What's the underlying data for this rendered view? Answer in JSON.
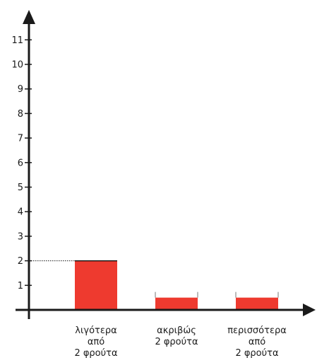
{
  "chart_data": {
    "type": "bar",
    "title": "",
    "xlabel": "",
    "ylabel": "",
    "categories": [
      [
        "λιγότερα",
        "από",
        "2 φρούτα"
      ],
      [
        "ακριβώς",
        "2 φρούτα"
      ],
      [
        "περισσότερα",
        "από",
        "2 φρούτα"
      ]
    ],
    "values": [
      2,
      0.5,
      0.5
    ],
    "yticks": [
      "1",
      "2",
      "3",
      "4",
      "5",
      "6",
      "7",
      "8",
      "9",
      "10",
      "11"
    ],
    "ylim": [
      0,
      11
    ],
    "grid": false,
    "legend": "none",
    "bar_color": "#ee3a2f",
    "axis_color": "#1a1a1a"
  }
}
